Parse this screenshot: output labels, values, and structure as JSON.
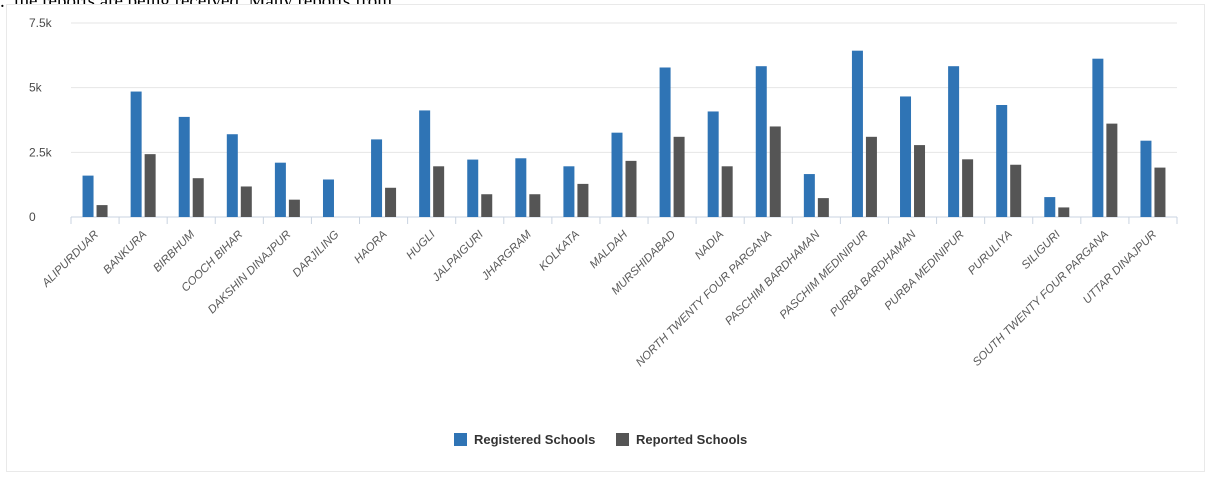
{
  "page": {
    "caption_fragment": "...the reports are being received. Many reports from "
  },
  "chart_data": {
    "type": "bar",
    "categories": [
      "ALIPURDUAR",
      "BANKURA",
      "BIRBHUM",
      "COOCH BIHAR",
      "DAKSHIN DINAJPUR",
      "DARJILING",
      "HAORA",
      "HUGLI",
      "JALPAIGURI",
      "JHARGRAM",
      "KOLKATA",
      "MALDAH",
      "MURSHIDABAD",
      "NADIA",
      "NORTH TWENTY FOUR PARGANA",
      "PASCHIM BARDHAMAN",
      "PASCHIM MEDINIPUR",
      "PURBA BARDHAMAN",
      "PURBA MEDINIPUR",
      "PURULIYA",
      "SILIGURI",
      "SOUTH TWENTY FOUR PARGANA",
      "UTTAR DINAJPUR"
    ],
    "series": [
      {
        "name": "Registered Schools",
        "color": "#2f74b5",
        "values": [
          1600,
          4850,
          3870,
          3200,
          2100,
          1450,
          3000,
          4120,
          2220,
          2270,
          1960,
          3260,
          5780,
          4080,
          5830,
          1660,
          6430,
          4660,
          5830,
          4330,
          770,
          6120,
          2950
        ]
      },
      {
        "name": "Reported Schools",
        "color": "#555555",
        "values": [
          460,
          2430,
          1500,
          1180,
          670,
          0,
          1130,
          1960,
          880,
          880,
          1280,
          2170,
          3100,
          1960,
          3500,
          730,
          3100,
          2780,
          2230,
          2020,
          370,
          3610,
          1910
        ]
      }
    ],
    "yticks": [
      {
        "value": 0,
        "label": "0"
      },
      {
        "value": 2500,
        "label": "2.5k"
      },
      {
        "value": 5000,
        "label": "5k"
      },
      {
        "value": 7500,
        "label": "7.5k"
      }
    ],
    "ylim": [
      0,
      7500
    ],
    "xlabel": "",
    "ylabel": "",
    "legend_position": "bottom-center",
    "grid": true
  }
}
